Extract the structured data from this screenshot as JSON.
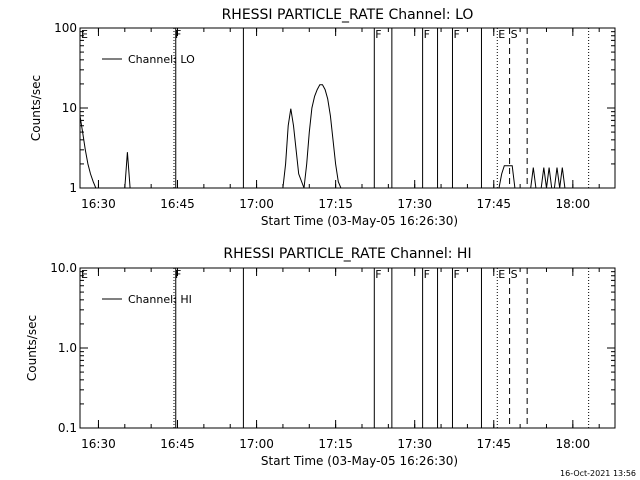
{
  "colors": {
    "background": "#ffffff",
    "foreground": "#000000"
  },
  "footer": {
    "timestamp": "16-Oct-2021 13:56"
  },
  "chart_data": [
    {
      "type": "line",
      "title": "RHESSI PARTICLE_RATE Channel: LO",
      "xlabel": "Start Time (03-May-05 16:26:30)",
      "ylabel": "Counts/sec",
      "yscale": "log",
      "xlim": [
        "16:26:30",
        "18:08:00"
      ],
      "ylim": [
        1,
        100
      ],
      "xticks": [
        "16:30",
        "16:45",
        "17:00",
        "17:15",
        "17:30",
        "17:45",
        "18:00"
      ],
      "yticks": [
        {
          "value": 1,
          "label": "1"
        },
        {
          "value": 10,
          "label": "10"
        },
        {
          "value": 100,
          "label": "100"
        }
      ],
      "legend": {
        "placement": "top-left",
        "entries": [
          "Channel: LO"
        ]
      },
      "series": [
        {
          "name": "Channel: LO",
          "x": [
            "16:26:30",
            "16:27:00",
            "16:27:30",
            "16:28:00",
            "16:28:30",
            "16:29:00",
            "16:29:30",
            "16:30:00",
            "16:31:00",
            "16:35:00",
            "16:35:30",
            "16:36:00",
            "16:36:30",
            "16:37:00",
            "17:05:00",
            "17:05:30",
            "17:06:00",
            "17:06:30",
            "17:07:00",
            "17:07:30",
            "17:08:00",
            "17:09:00",
            "17:09:30",
            "17:10:00",
            "17:10:30",
            "17:11:00",
            "17:11:30",
            "17:12:00",
            "17:12:30",
            "17:13:00",
            "17:13:30",
            "17:14:00",
            "17:14:30",
            "17:15:00",
            "17:15:30",
            "17:16:00",
            "17:16:30",
            "17:17:00",
            "17:18:00",
            "17:46:00",
            "17:46:30",
            "17:47:00",
            "17:47:30",
            "17:48:00",
            "17:48:30",
            "17:49:00",
            "17:50:00",
            "17:51:00",
            "17:51:30",
            "17:52:00",
            "17:52:30",
            "17:53:00",
            "17:54:00",
            "17:54:30",
            "17:55:00",
            "17:55:30",
            "17:56:00",
            "17:56:30",
            "17:57:00",
            "17:57:30",
            "17:58:00",
            "17:58:30",
            "17:59:00",
            "18:00:00"
          ],
          "y": [
            8.0,
            5.0,
            3.0,
            2.0,
            1.5,
            1.2,
            1.0,
            1.0,
            1.0,
            1.0,
            2.8,
            1.0,
            1.0,
            1.0,
            1.0,
            2.0,
            6.0,
            9.8,
            6.0,
            3.0,
            1.5,
            1.0,
            2.0,
            5.0,
            10.0,
            14.0,
            17.0,
            19.5,
            19.5,
            17.0,
            13.0,
            8.0,
            4.0,
            2.0,
            1.2,
            1.0,
            1.0,
            1.0,
            1.0,
            1.0,
            1.5,
            1.9,
            1.9,
            1.9,
            1.9,
            1.0,
            1.0,
            1.0,
            1.0,
            1.0,
            1.8,
            1.0,
            1.0,
            1.8,
            1.0,
            1.8,
            1.0,
            1.0,
            1.8,
            1.0,
            1.8,
            1.0,
            1.0,
            1.0
          ]
        }
      ],
      "markers": [
        {
          "time": "16:26:30",
          "label": "E",
          "style": "none"
        },
        {
          "time": "16:44:20",
          "label": "F",
          "style": "dotted"
        },
        {
          "time": "16:44:40",
          "label": "",
          "style": "solid"
        },
        {
          "time": "16:57:30",
          "label": "",
          "style": "solid"
        },
        {
          "time": "17:22:20",
          "label": "F",
          "style": "solid"
        },
        {
          "time": "17:25:40",
          "label": "",
          "style": "solid"
        },
        {
          "time": "17:31:30",
          "label": "F",
          "style": "solid"
        },
        {
          "time": "17:34:20",
          "label": "",
          "style": "solid"
        },
        {
          "time": "17:37:10",
          "label": "F",
          "style": "solid"
        },
        {
          "time": "17:42:40",
          "label": "",
          "style": "solid"
        },
        {
          "time": "17:45:40",
          "label": "E",
          "style": "dotted"
        },
        {
          "time": "17:48:00",
          "label": "S",
          "style": "dashed"
        },
        {
          "time": "17:51:20",
          "label": "",
          "style": "dashed"
        },
        {
          "time": "18:03:00",
          "label": "",
          "style": "dotted"
        }
      ]
    },
    {
      "type": "line",
      "title": "RHESSI PARTICLE_RATE Channel: HI",
      "xlabel": "Start Time (03-May-05 16:26:30)",
      "ylabel": "Counts/sec",
      "yscale": "log",
      "xlim": [
        "16:26:30",
        "18:08:00"
      ],
      "ylim": [
        0.1,
        10.0
      ],
      "xticks": [
        "16:30",
        "16:45",
        "17:00",
        "17:15",
        "17:30",
        "17:45",
        "18:00"
      ],
      "yticks": [
        {
          "value": 0.1,
          "label": "0.1"
        },
        {
          "value": 1,
          "label": "1.0"
        },
        {
          "value": 10,
          "label": "10.0"
        }
      ],
      "legend": {
        "placement": "top-left",
        "entries": [
          "Channel: HI"
        ]
      },
      "series": [
        {
          "name": "Channel: HI",
          "x": [],
          "y": []
        }
      ],
      "markers": [
        {
          "time": "16:26:30",
          "label": "E",
          "style": "none"
        },
        {
          "time": "16:44:20",
          "label": "F",
          "style": "dotted"
        },
        {
          "time": "16:44:40",
          "label": "",
          "style": "solid"
        },
        {
          "time": "16:57:30",
          "label": "",
          "style": "solid"
        },
        {
          "time": "17:22:20",
          "label": "F",
          "style": "solid"
        },
        {
          "time": "17:25:40",
          "label": "",
          "style": "solid"
        },
        {
          "time": "17:31:30",
          "label": "F",
          "style": "solid"
        },
        {
          "time": "17:34:20",
          "label": "",
          "style": "solid"
        },
        {
          "time": "17:37:10",
          "label": "F",
          "style": "solid"
        },
        {
          "time": "17:42:40",
          "label": "",
          "style": "solid"
        },
        {
          "time": "17:45:40",
          "label": "E",
          "style": "dotted"
        },
        {
          "time": "17:48:00",
          "label": "S",
          "style": "dashed"
        },
        {
          "time": "17:51:20",
          "label": "",
          "style": "dashed"
        },
        {
          "time": "18:03:00",
          "label": "",
          "style": "dotted"
        }
      ]
    }
  ]
}
